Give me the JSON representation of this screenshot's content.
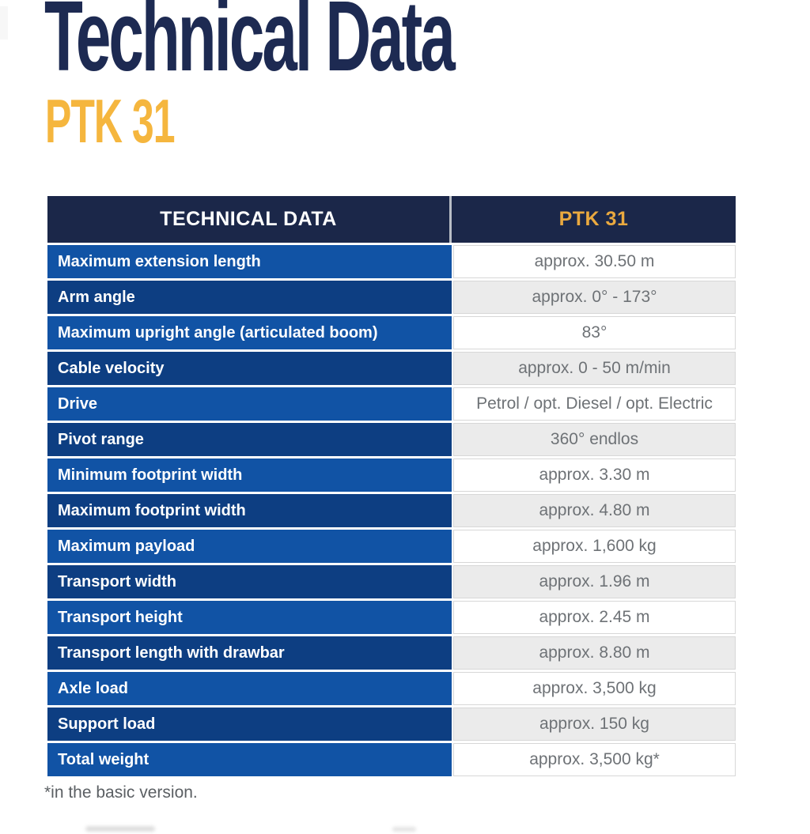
{
  "page": {
    "title": "Technical Data",
    "subtitle": "PTK 31",
    "footnote": "*in the basic version."
  },
  "table": {
    "header": {
      "left": "TECHNICAL DATA",
      "right": "PTK 31"
    },
    "rows": [
      {
        "label": "Maximum extension length",
        "value": "approx. 30.50 m"
      },
      {
        "label": "Arm angle",
        "value": "approx. 0° - 173°"
      },
      {
        "label": "Maximum upright angle (articulated boom)",
        "value": "83°"
      },
      {
        "label": "Cable velocity",
        "value": "approx. 0 - 50 m/min"
      },
      {
        "label": "Drive",
        "value": "Petrol / opt. Diesel / opt. Electric"
      },
      {
        "label": "Pivot range",
        "value": "360° endlos"
      },
      {
        "label": "Minimum footprint width",
        "value": "approx. 3.30 m"
      },
      {
        "label": "Maximum footprint width",
        "value": "approx. 4.80 m"
      },
      {
        "label": "Maximum payload",
        "value": "approx. 1,600 kg"
      },
      {
        "label": "Transport width",
        "value": "approx. 1.96 m"
      },
      {
        "label": "Transport height",
        "value": "approx. 2.45 m"
      },
      {
        "label": "Transport length with drawbar",
        "value": "approx. 8.80 m"
      },
      {
        "label": "Axle load",
        "value": "approx. 3,500 kg"
      },
      {
        "label": "Support load",
        "value": "approx. 150 kg"
      },
      {
        "label": "Total weight",
        "value": "approx. 3,500 kg*"
      }
    ]
  },
  "colors": {
    "navy-title": "#1d2a52",
    "navy-header": "#1b2749",
    "brand-yellow": "#f5b63e",
    "gold-header": "#eaa93f",
    "blue-light": "#1153a5",
    "blue-dark": "#0d3e82"
  }
}
